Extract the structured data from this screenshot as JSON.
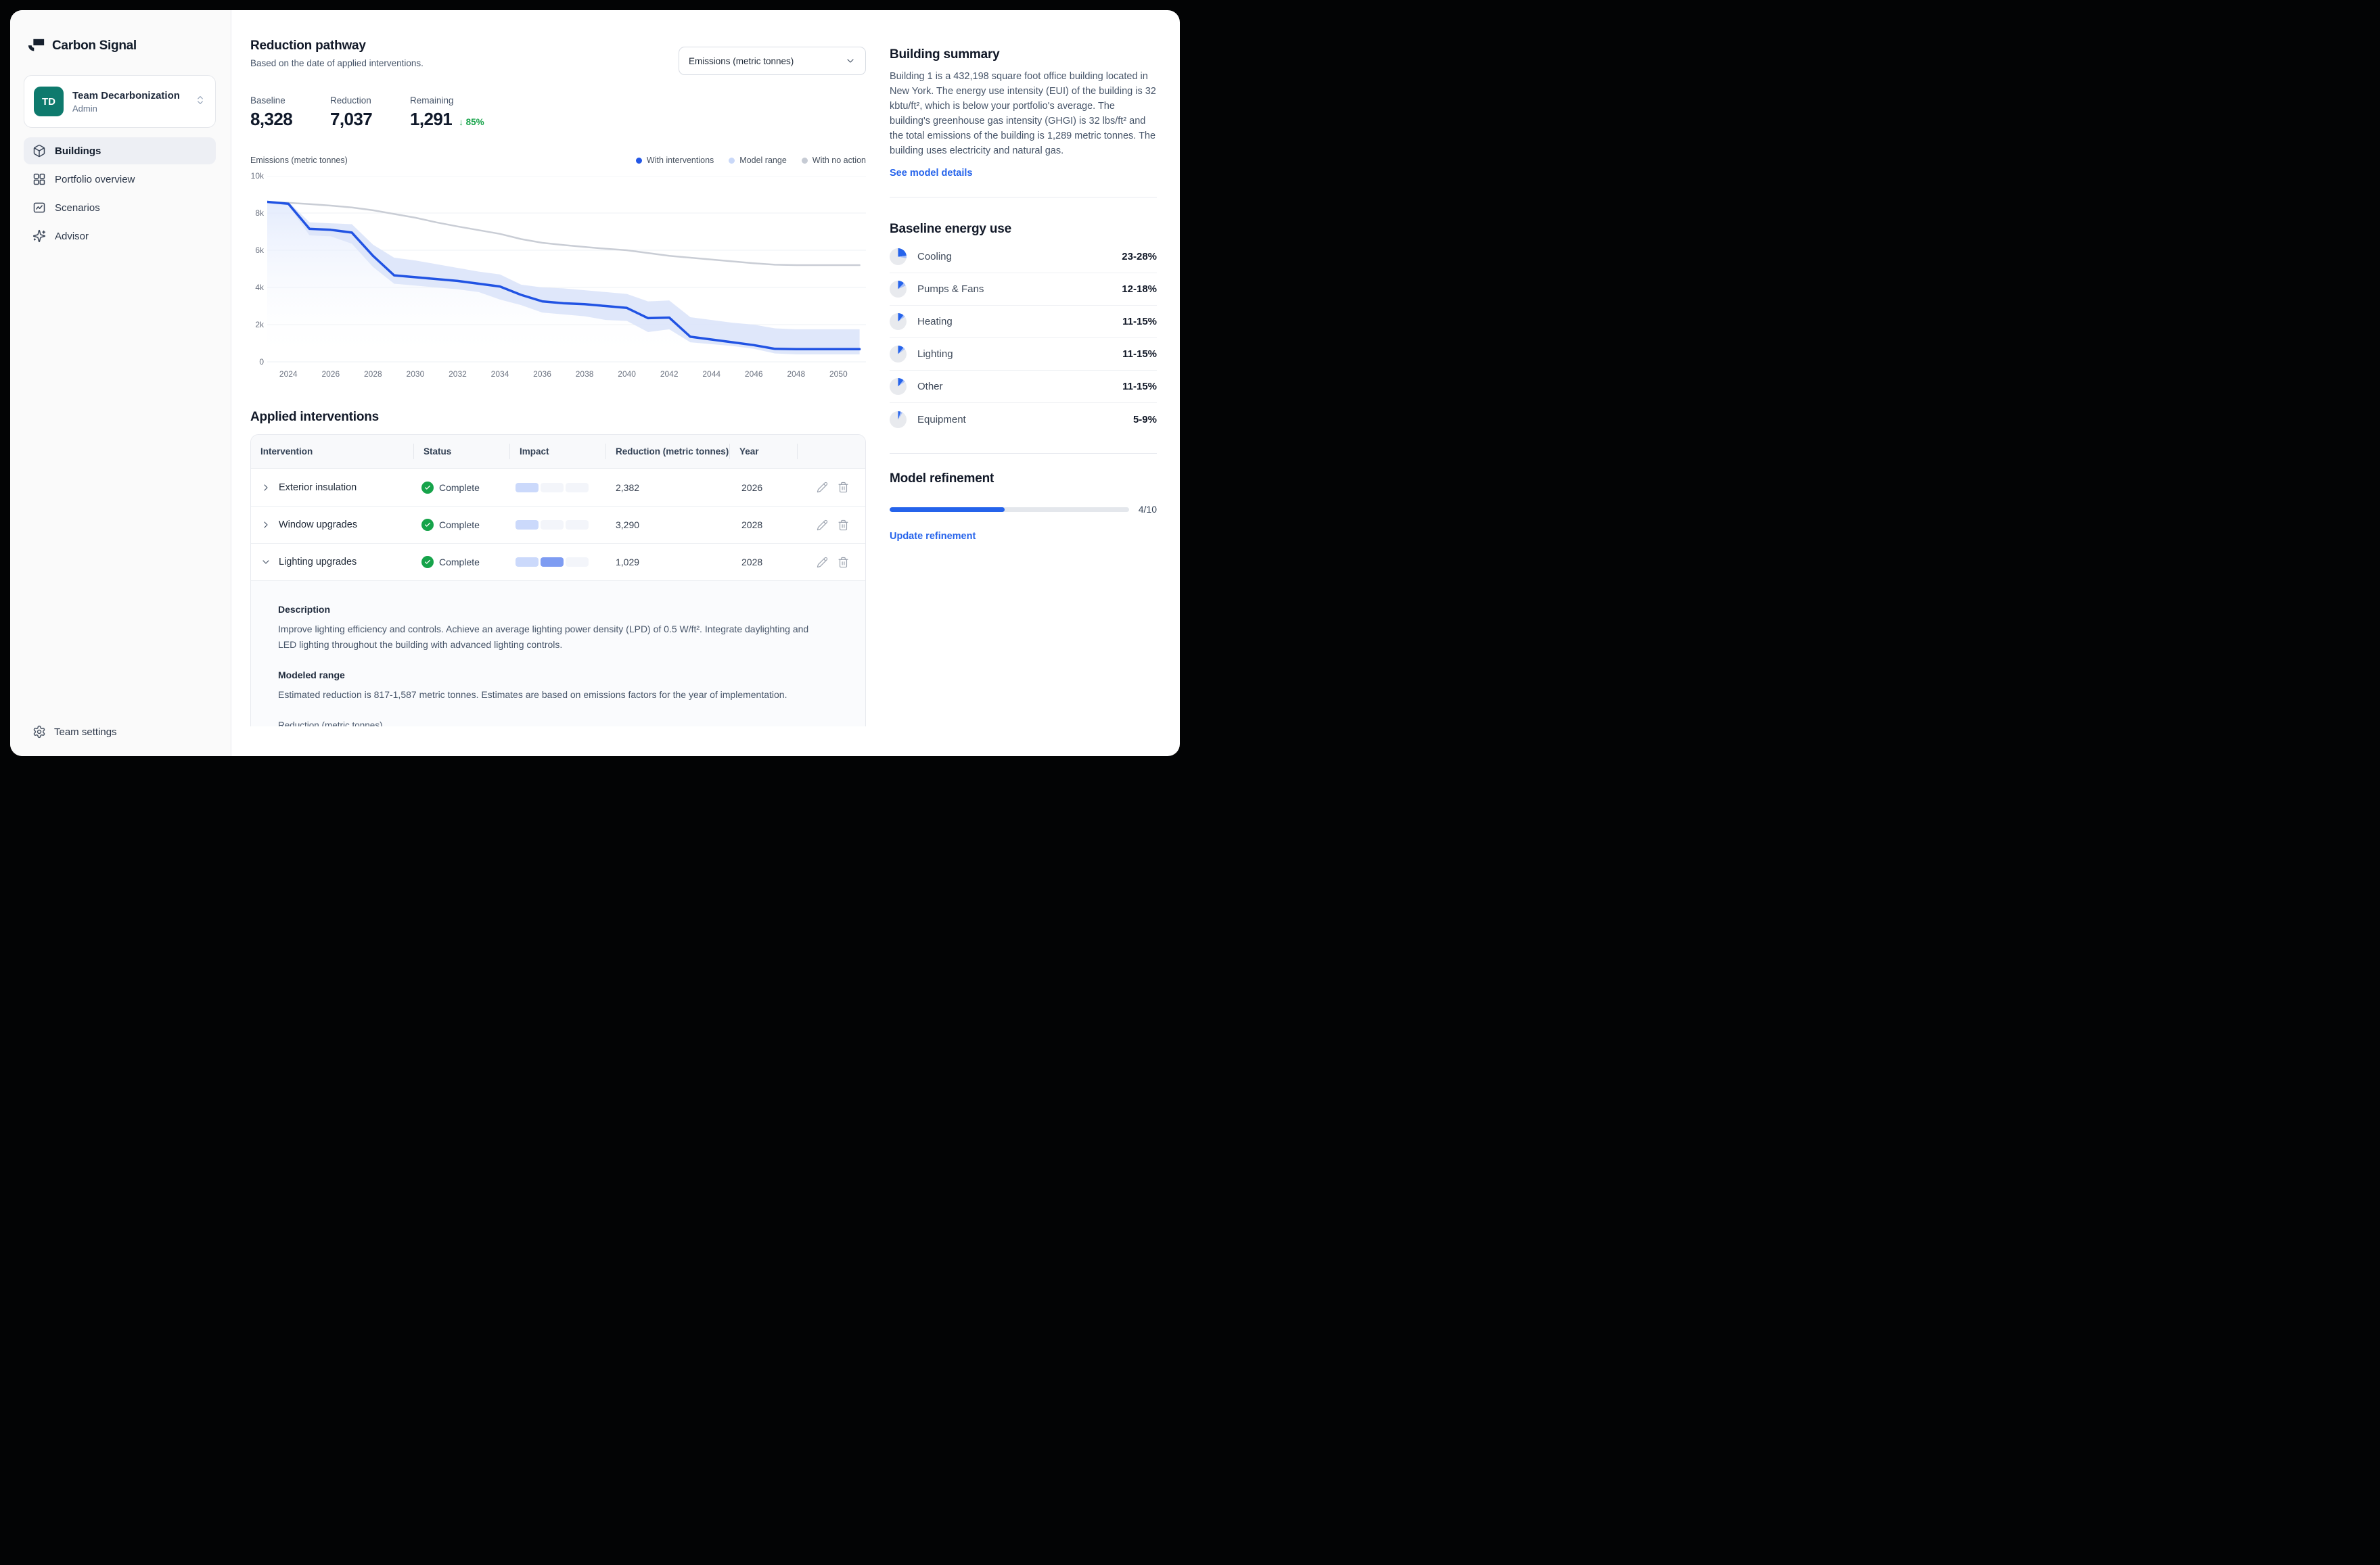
{
  "app": {
    "brand": "Carbon Signal"
  },
  "team": {
    "initials": "TD",
    "name": "Team Decarbonization",
    "role": "Admin"
  },
  "nav": {
    "items": [
      {
        "id": "buildings",
        "label": "Buildings",
        "icon": "cube-icon",
        "active": true
      },
      {
        "id": "portfolio-overview",
        "label": "Portfolio overview",
        "icon": "grid-icon",
        "active": false
      },
      {
        "id": "scenarios",
        "label": "Scenarios",
        "icon": "scenario-chart-icon",
        "active": false
      },
      {
        "id": "advisor",
        "label": "Advisor",
        "icon": "sparkles-icon",
        "active": false
      }
    ],
    "footer": {
      "label": "Team settings",
      "icon": "gear-icon"
    }
  },
  "pathway": {
    "title": "Reduction pathway",
    "subtitle": "Based on the date of applied interventions.",
    "unit_select": "Emissions (metric tonnes)",
    "stats": [
      {
        "label": "Baseline",
        "value": "8,328"
      },
      {
        "label": "Reduction",
        "value": "7,037"
      },
      {
        "label": "Remaining",
        "value": "1,291",
        "delta": "85%",
        "delta_icon": "arrow-down-icon"
      }
    ]
  },
  "chart_data": {
    "type": "line",
    "title": "Reduction pathway",
    "ylabel": "Emissions (metric tonnes)",
    "ylim": [
      0,
      10000
    ],
    "y_ticks": [
      {
        "v": 10000,
        "label": "10k"
      },
      {
        "v": 8000,
        "label": "8k"
      },
      {
        "v": 6000,
        "label": "6k"
      },
      {
        "v": 4000,
        "label": "4k"
      },
      {
        "v": 2000,
        "label": "2k"
      },
      {
        "v": 0,
        "label": "0"
      }
    ],
    "x": [
      2023,
      2024,
      2025,
      2026,
      2027,
      2028,
      2029,
      2030,
      2031,
      2032,
      2033,
      2034,
      2035,
      2036,
      2037,
      2038,
      2039,
      2040,
      2041,
      2042,
      2043,
      2044,
      2045,
      2046,
      2047,
      2048,
      2049,
      2050,
      2051
    ],
    "x_ticks": [
      2024,
      2026,
      2028,
      2030,
      2032,
      2034,
      2036,
      2038,
      2040,
      2042,
      2044,
      2046,
      2048,
      2050
    ],
    "series": [
      {
        "name": "With interventions",
        "color": "#2153e3",
        "values": [
          8600,
          8500,
          7150,
          7100,
          6950,
          5700,
          4650,
          4550,
          4450,
          4350,
          4200,
          4050,
          3600,
          3250,
          3150,
          3100,
          3000,
          2900,
          2350,
          2380,
          1350,
          1200,
          1050,
          900,
          700,
          680,
          680,
          680,
          680
        ]
      },
      {
        "name": "With no action",
        "color": "#c9cdd5",
        "values": [
          8600,
          8550,
          8480,
          8400,
          8300,
          8150,
          7950,
          7750,
          7500,
          7280,
          7080,
          6880,
          6600,
          6400,
          6280,
          6180,
          6080,
          6000,
          5850,
          5700,
          5600,
          5500,
          5400,
          5300,
          5220,
          5200,
          5200,
          5200,
          5200
        ]
      }
    ],
    "band": {
      "name": "Model range",
      "color": "#dbe4fa",
      "lower": [
        8600,
        8400,
        6800,
        6750,
        6350,
        5100,
        4200,
        4100,
        4000,
        3900,
        3750,
        3350,
        3050,
        2650,
        2550,
        2450,
        2250,
        2200,
        1600,
        1750,
        1050,
        950,
        850,
        700,
        450,
        400,
        400,
        400,
        400
      ],
      "upper": [
        8600,
        8600,
        7500,
        7450,
        7400,
        6300,
        5600,
        5450,
        5250,
        5050,
        4850,
        4700,
        4150,
        4000,
        3950,
        3850,
        3750,
        3650,
        3250,
        3300,
        2400,
        2250,
        2100,
        2000,
        1800,
        1750,
        1750,
        1750,
        1750
      ]
    },
    "legend": [
      {
        "label": "With interventions",
        "color": "#2357e6"
      },
      {
        "label": "Model range",
        "color": "#c9d8f8"
      },
      {
        "label": "With no action",
        "color": "#c6cbd4"
      }
    ],
    "legend_position": "top-right",
    "grid": true
  },
  "interventions": {
    "title": "Applied interventions",
    "columns": [
      "Intervention",
      "Status",
      "Impact",
      "Reduction (metric tonnes)",
      "Year",
      ""
    ],
    "rows": [
      {
        "name": "Exterior insulation",
        "status": "Complete",
        "impact": [
          "light",
          "empty",
          "empty"
        ],
        "reduction": "2,382",
        "year": "2026",
        "expanded": false
      },
      {
        "name": "Window upgrades",
        "status": "Complete",
        "impact": [
          "light",
          "empty",
          "empty"
        ],
        "reduction": "3,290",
        "year": "2028",
        "expanded": false
      },
      {
        "name": "Lighting upgrades",
        "status": "Complete",
        "impact": [
          "light",
          "medium",
          "empty"
        ],
        "reduction": "1,029",
        "year": "2028",
        "expanded": true
      }
    ],
    "detail": {
      "description_title": "Description",
      "description_lines": [
        "Improve lighting efficiency and controls. Achieve an average lighting power density (LPD) of 0.5 W/ft². Integrate daylighting and",
        "LED lighting throughout the building with advanced lighting controls."
      ],
      "modeled_title": "Modeled range",
      "modeled_text": "Estimated reduction is 817-1,587 metric tonnes. Estimates are based on emissions factors for the year of implementation.",
      "chart_label": "Reduction (metric tonnes)"
    }
  },
  "building_summary": {
    "title": "Building summary",
    "text": "Building 1 is a 432,198 square foot office building located in New York. The energy use intensity (EUI) of the building is 32 kbtu/ft², which is below your portfolio's average. The building's greenhouse gas intensity (GHGI) is 32 lbs/ft² and the total emissions of the building is 1,289 metric tonnes. The building uses electricity and natural gas.",
    "link": "See model details"
  },
  "baseline_energy": {
    "title": "Baseline energy use",
    "items": [
      {
        "label": "Cooling",
        "range": "23-28%",
        "min": 23,
        "max": 28
      },
      {
        "label": "Pumps & Fans",
        "range": "12-18%",
        "min": 12,
        "max": 18
      },
      {
        "label": "Heating",
        "range": "11-15%",
        "min": 11,
        "max": 15
      },
      {
        "label": "Lighting",
        "range": "11-15%",
        "min": 11,
        "max": 15
      },
      {
        "label": "Other",
        "range": "11-15%",
        "min": 11,
        "max": 15
      },
      {
        "label": "Equipment",
        "range": "5-9%",
        "min": 5,
        "max": 9
      }
    ]
  },
  "model_refinement": {
    "title": "Model refinement",
    "progress_label": "4/10",
    "progress_pct": 48,
    "link": "Update refinement"
  },
  "colors": {
    "accent": "#2563eb",
    "line_blue": "#2153e3",
    "line_gray": "#c9cdd5",
    "band": "#dbe4fa",
    "green": "#16a34a",
    "teal": "#0e7a6d",
    "impact_light": "#cbd9fb",
    "impact_medium": "#7e9cf2",
    "impact_empty": "#f3f5fa",
    "pie_light": "#a9c0f7",
    "pie_base": "#e8eaee"
  }
}
